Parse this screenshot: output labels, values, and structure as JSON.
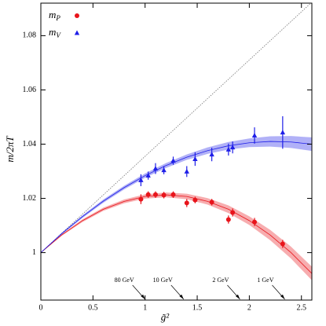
{
  "chart_data": {
    "type": "scatter",
    "x_label": "g̃²",
    "y_label": "m/2πT",
    "xlim": [
      0,
      2.6
    ],
    "ylim": [
      0.9825,
      1.092
    ],
    "xticks": [
      0,
      0.5,
      1,
      1.5,
      2,
      2.5
    ],
    "yticks": [
      1,
      1.02,
      1.04,
      1.06,
      1.08
    ],
    "legend": "top-left",
    "series": [
      {
        "name": "mP",
        "color": "#e8141b",
        "marker": "circle",
        "x": [
          0.96,
          1.03,
          1.1,
          1.18,
          1.27,
          1.4,
          1.48,
          1.64,
          1.8,
          1.84,
          2.05,
          2.32
        ],
        "values": [
          1.0197,
          1.0214,
          1.0214,
          1.0212,
          1.0214,
          1.0183,
          1.0194,
          1.0186,
          1.0122,
          1.0148,
          1.0113,
          1.0032
        ],
        "errors": [
          0.0018,
          0.0012,
          0.0012,
          0.0012,
          0.0012,
          0.0015,
          0.0012,
          0.0012,
          0.0015,
          0.0015,
          0.0015,
          0.0015
        ]
      },
      {
        "name": "mV",
        "color": "#1f1fe8",
        "marker": "triangle",
        "x": [
          0.96,
          1.03,
          1.1,
          1.18,
          1.27,
          1.4,
          1.48,
          1.64,
          1.8,
          1.84,
          2.05,
          2.32
        ],
        "values": [
          1.0267,
          1.0284,
          1.031,
          1.0304,
          1.0339,
          1.0299,
          1.0345,
          1.0362,
          1.038,
          1.0388,
          1.0432,
          1.0443
        ],
        "errors": [
          0.0022,
          0.0015,
          0.002,
          0.0015,
          0.0015,
          0.002,
          0.0025,
          0.0025,
          0.0022,
          0.0022,
          0.003,
          0.006
        ]
      }
    ],
    "fits": [
      {
        "color": "#e8141b",
        "x": [
          0,
          0.2,
          0.4,
          0.6,
          0.8,
          1,
          1.2,
          1.4,
          1.6,
          1.8,
          2,
          2.2,
          2.4,
          2.6
        ],
        "values": [
          1,
          1.0065,
          1.0118,
          1.016,
          1.0189,
          1.0207,
          1.0213,
          1.0207,
          1.0189,
          1.016,
          1.0118,
          1.0065,
          1.0,
          0.9923
        ],
        "band": [
          0,
          0.0003,
          0.0005,
          0.0006,
          0.0007,
          0.0008,
          0.0009,
          0.001,
          0.0012,
          0.0014,
          0.0016,
          0.0019,
          0.0022,
          0.0025
        ]
      },
      {
        "color": "#1f1fe8",
        "x": [
          0,
          0.2,
          0.4,
          0.6,
          0.8,
          1,
          1.2,
          1.4,
          1.6,
          1.8,
          2,
          2.2,
          2.4,
          2.6
        ],
        "values": [
          1,
          1.007,
          1.0133,
          1.019,
          1.024,
          1.0284,
          1.0321,
          1.0352,
          1.0376,
          1.0394,
          1.0405,
          1.041,
          1.0408,
          1.04
        ],
        "band": [
          0,
          0.0003,
          0.0005,
          0.0006,
          0.0007,
          0.0008,
          0.0009,
          0.001,
          0.0012,
          0.0014,
          0.0016,
          0.0019,
          0.0022,
          0.0025
        ]
      }
    ],
    "reference_line": {
      "x": [
        0,
        2.59
      ],
      "values": [
        1,
        1.092
      ]
    },
    "annotations": [
      {
        "text": "80 GeV",
        "x": 1.0
      },
      {
        "text": "10 GeV",
        "x": 1.37
      },
      {
        "text": "2 GeV",
        "x": 1.91
      },
      {
        "text": "1 GeV",
        "x": 2.34
      }
    ]
  }
}
